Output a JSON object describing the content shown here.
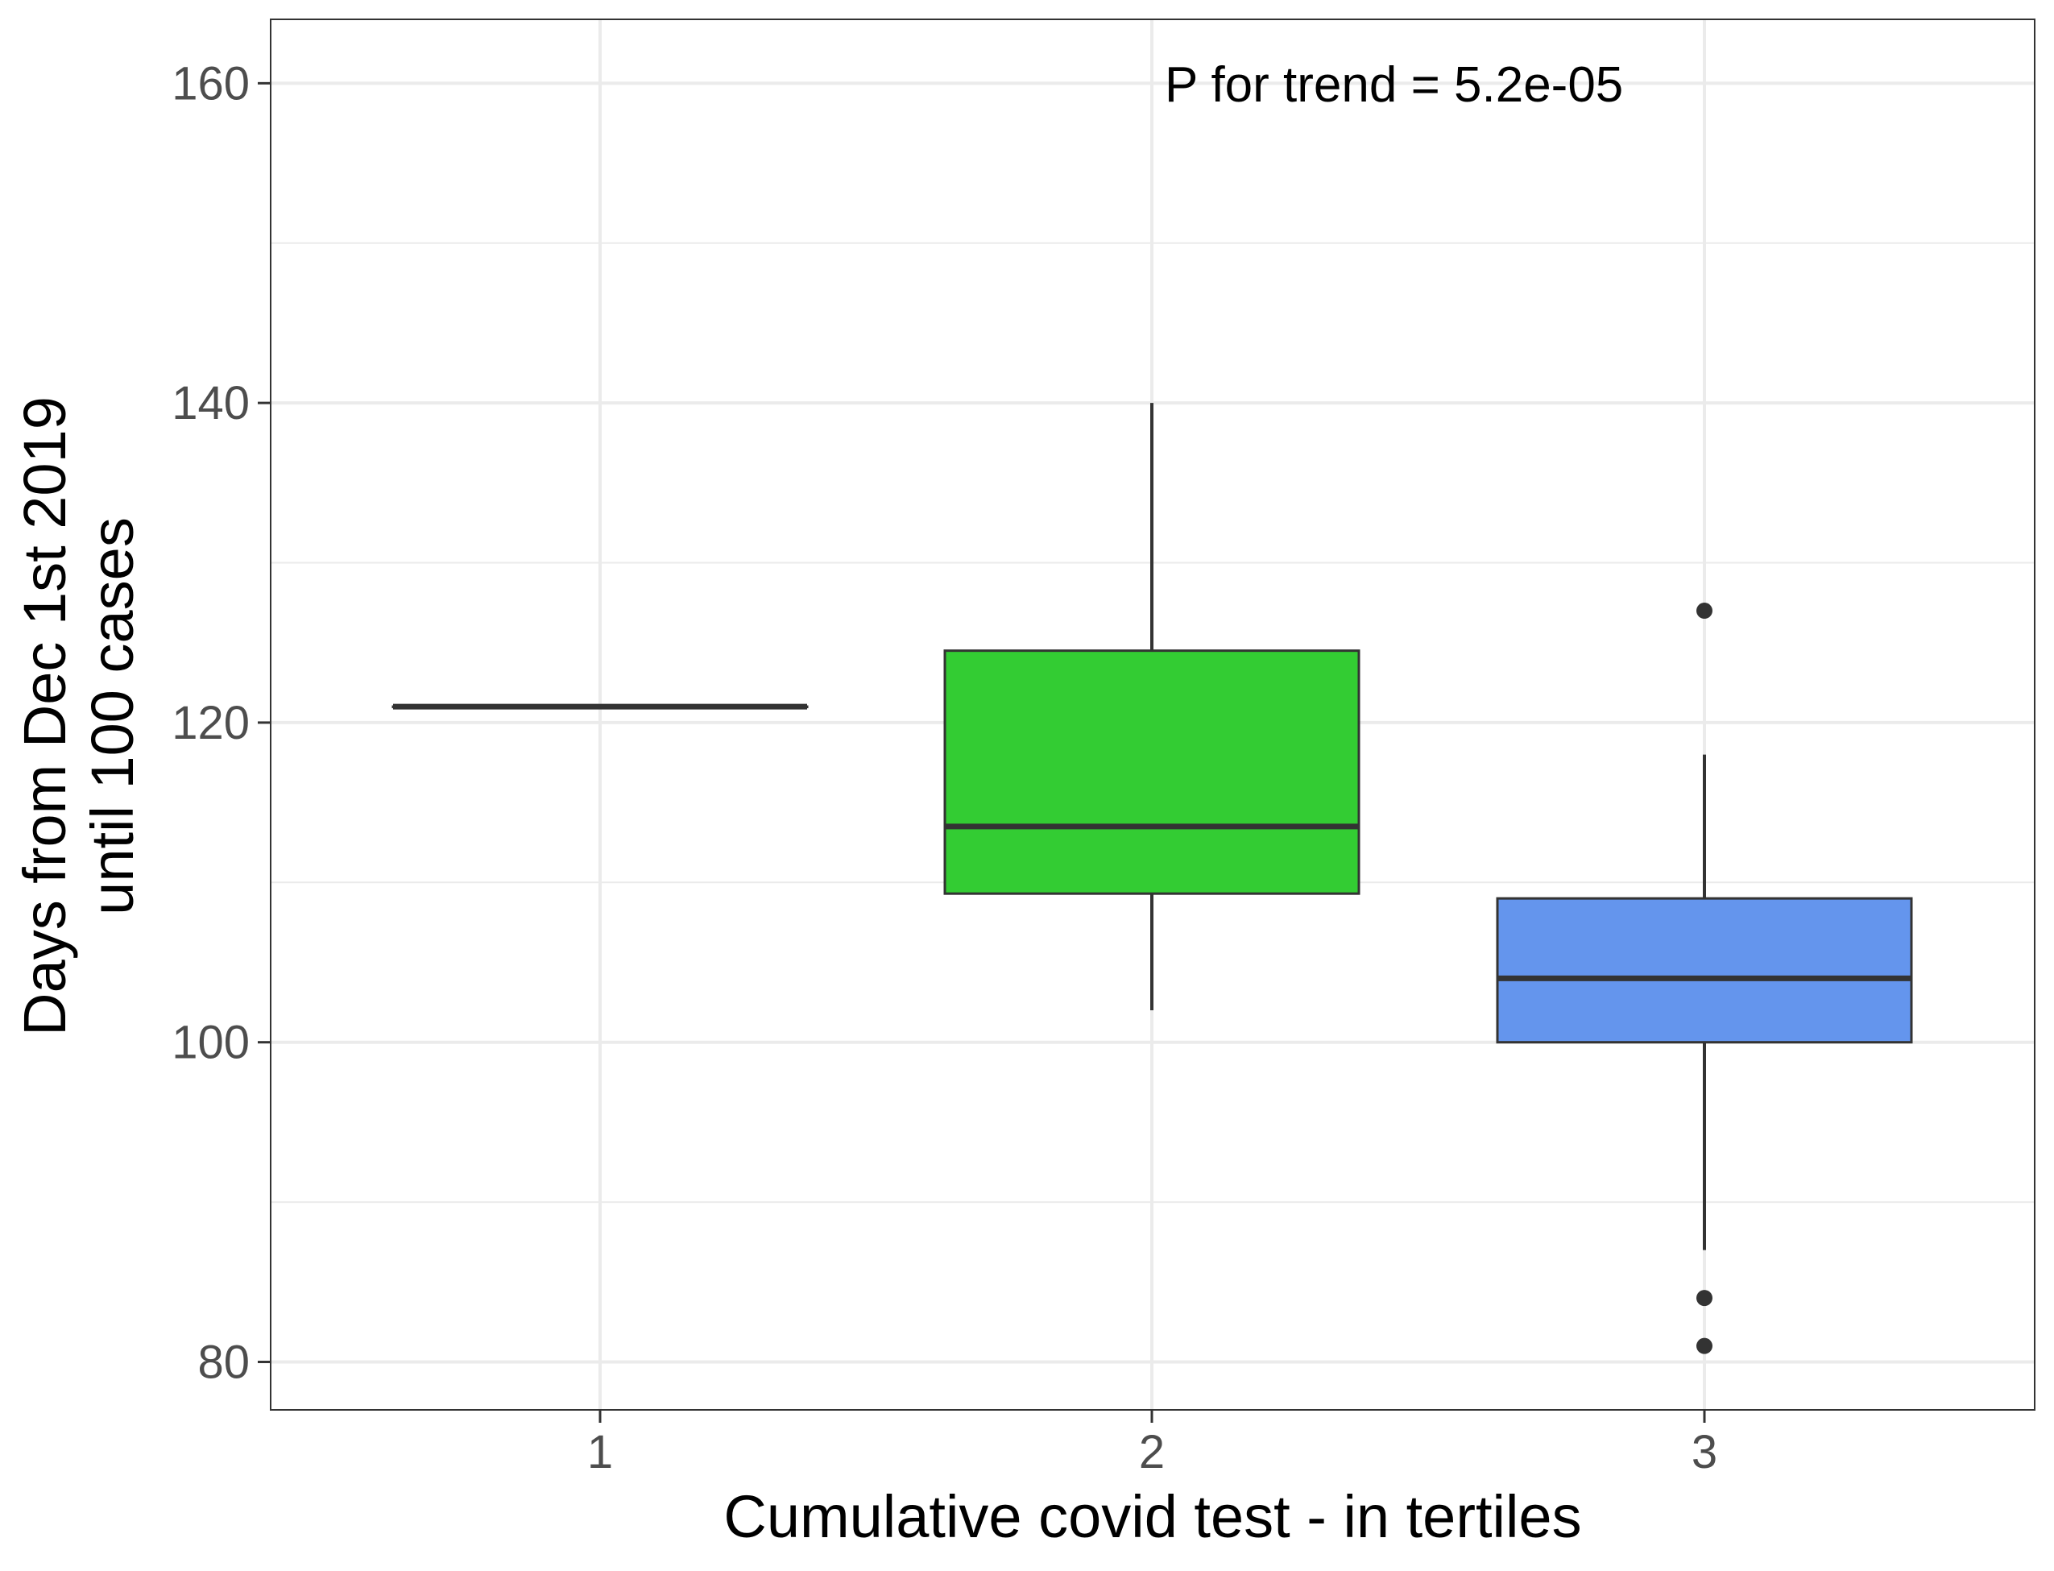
{
  "chart_data": {
    "type": "boxplot",
    "title": "",
    "xlabel": "Cumulative covid test - in tertiles",
    "ylabel_lines": [
      "Days from Dec 1st 2019",
      "until 100 cases"
    ],
    "ylim": [
      77,
      164
    ],
    "y_major_ticks": [
      80,
      100,
      120,
      140,
      160
    ],
    "y_minor_ticks": [
      90,
      110,
      130,
      150
    ],
    "grid": true,
    "legend": "none",
    "annotation": "P for trend = 5.2e-05",
    "categories": [
      "1",
      "2",
      "3"
    ],
    "boxes": [
      {
        "category": "1",
        "fill": "#333333",
        "lower_whisker": 121,
        "q1": 121,
        "median": 121,
        "q3": 121,
        "upper_whisker": 121,
        "outliers": []
      },
      {
        "category": "2",
        "fill": "#33CC33",
        "lower_whisker": 102,
        "q1": 109.3,
        "median": 113.5,
        "q3": 124.5,
        "upper_whisker": 140,
        "outliers": []
      },
      {
        "category": "3",
        "fill": "#6495ED",
        "lower_whisker": 87,
        "q1": 100,
        "median": 104,
        "q3": 109,
        "upper_whisker": 118,
        "outliers": [
          127,
          84,
          81
        ]
      }
    ]
  }
}
